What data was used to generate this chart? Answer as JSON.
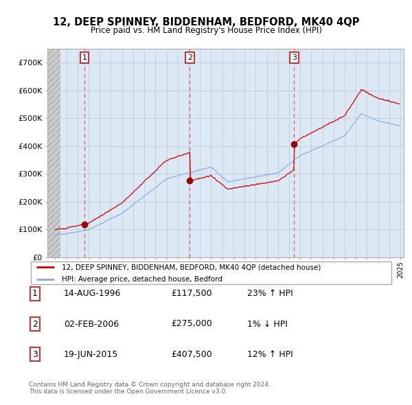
{
  "title": "12, DEEP SPINNEY, BIDDENHAM, BEDFORD, MK40 4QP",
  "subtitle": "Price paid vs. HM Land Registry's House Price Index (HPI)",
  "ylim": [
    0,
    750000
  ],
  "yticks": [
    0,
    100000,
    200000,
    300000,
    400000,
    500000,
    600000,
    700000
  ],
  "ytick_labels": [
    "£0",
    "£100K",
    "£200K",
    "£300K",
    "£400K",
    "£500K",
    "£600K",
    "£700K"
  ],
  "sale_dates_num": [
    1996.62,
    2006.09,
    2015.46
  ],
  "sale_prices": [
    117500,
    275000,
    407500
  ],
  "sale_labels": [
    "1",
    "2",
    "3"
  ],
  "red_line_color": "#cc0000",
  "blue_line_color": "#88aadd",
  "sale_marker_color": "#990000",
  "dashed_line_color": "#dd6666",
  "plot_bg_color": "#dde8f5",
  "hatch_bg_color": "#cccccc",
  "legend_entry1": "12, DEEP SPINNEY, BIDDENHAM, BEDFORD, MK40 4QP (detached house)",
  "legend_entry2": "HPI: Average price, detached house, Bedford",
  "table_data": [
    [
      "1",
      "14-AUG-1996",
      "£117,500",
      "23% ↑ HPI"
    ],
    [
      "2",
      "02-FEB-2006",
      "£275,000",
      "1% ↓ HPI"
    ],
    [
      "3",
      "19-JUN-2015",
      "£407,500",
      "12% ↑ HPI"
    ]
  ],
  "footnote": "Contains HM Land Registry data © Crown copyright and database right 2024.\nThis data is licensed under the Open Government Licence v3.0.",
  "bg_color": "#ffffff",
  "grid_color": "#bbccdd",
  "xstart": 1994,
  "xend": 2025
}
